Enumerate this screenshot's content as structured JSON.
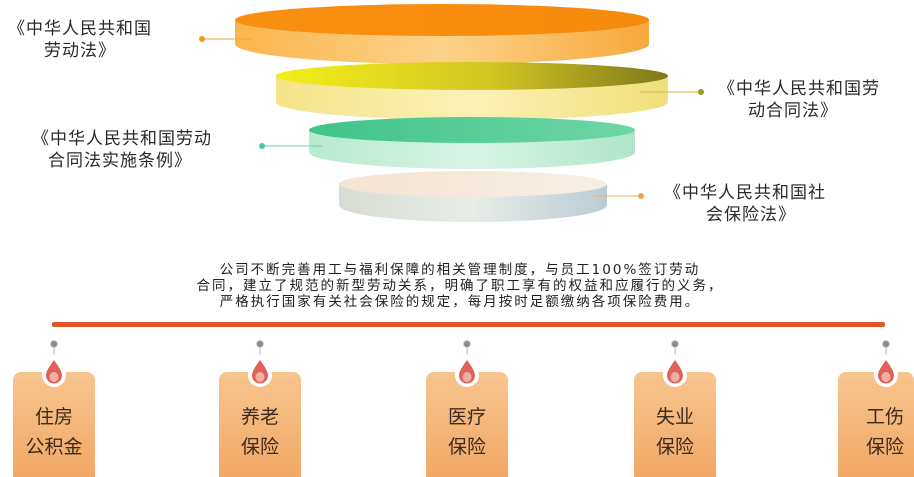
{
  "laws": [
    {
      "line1": "《中华人民共和国",
      "line2": "劳动法》"
    },
    {
      "line1": "《中华人民共和国劳",
      "line2": "动合同法》"
    },
    {
      "line1": "《中华人民共和国劳动",
      "line2": "合同法实施条例》"
    },
    {
      "line1": "《中华人民共和国社",
      "line2": "会保险法》"
    }
  ],
  "summary": {
    "line1": "公司不断完善用工与福利保障的相关管理制度，与员工100%签订劳动",
    "line2": "合同，建立了规范的新型劳动关系，明确了职工享有的权益和应履行的义务，",
    "line3": "严格执行国家有关社会保险的规定，每月按时足额缴纳各项保险费用。"
  },
  "benefits": [
    {
      "line1": "住房",
      "line2": "公积金"
    },
    {
      "line1": "养老",
      "line2": "保险"
    },
    {
      "line1": "医疗",
      "line2": "保险"
    },
    {
      "line1": "失业",
      "line2": "保险"
    },
    {
      "line1": "工伤",
      "line2": "保险"
    }
  ],
  "colors": {
    "layer1": "#f68a0c",
    "layer2": "#ecd92a",
    "layer3": "#5ccf95",
    "layer4": "#e8dccf",
    "timeline": "#e5532b",
    "card": "#f3b475",
    "drop": "#e0605a"
  }
}
